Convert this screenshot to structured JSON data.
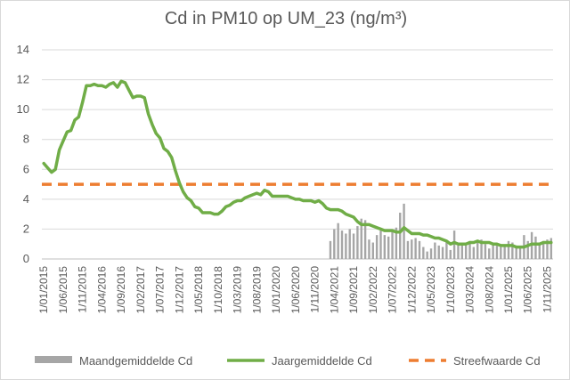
{
  "chart_data": {
    "type": "line",
    "title": "Cd in PM10 op UM_23 (ng/m³)",
    "xlabel": "",
    "ylabel": "",
    "ylim": [
      0,
      14
    ],
    "yticks": [
      0,
      2,
      4,
      6,
      8,
      10,
      12,
      14
    ],
    "grid": "horizontal",
    "legend_position": "bottom",
    "x_start": "2015-01",
    "x_end": "2025-12",
    "x_tick_labels": [
      "1/01/2015",
      "1/06/2015",
      "1/11/2015",
      "1/04/2016",
      "1/09/2016",
      "1/02/2017",
      "1/07/2017",
      "1/12/2017",
      "1/05/2018",
      "1/10/2018",
      "1/03/2019",
      "1/08/2019",
      "1/01/2020",
      "1/06/2020",
      "1/11/2020",
      "1/04/2021",
      "1/09/2021",
      "1/02/2022",
      "1/07/2022",
      "1/12/2022",
      "1/05/2023",
      "1/10/2023",
      "1/03/2024",
      "1/08/2024",
      "1/01/2025",
      "1/06/2025",
      "1/11/2025"
    ],
    "series": [
      {
        "name": "Maandgemiddelde Cd",
        "kind": "bar",
        "color": "#a6a6a6",
        "points": [
          [
            "2021-03",
            1.2
          ],
          [
            "2021-04",
            2.0
          ],
          [
            "2021-05",
            2.4
          ],
          [
            "2021-06",
            1.9
          ],
          [
            "2021-07",
            1.7
          ],
          [
            "2021-08",
            2.0
          ],
          [
            "2021-09",
            1.7
          ],
          [
            "2021-10",
            2.2
          ],
          [
            "2021-11",
            2.7
          ],
          [
            "2021-12",
            2.6
          ],
          [
            "2022-01",
            1.3
          ],
          [
            "2022-02",
            1.1
          ],
          [
            "2022-03",
            1.6
          ],
          [
            "2022-04",
            1.9
          ],
          [
            "2022-05",
            1.6
          ],
          [
            "2022-06",
            1.5
          ],
          [
            "2022-07",
            1.9
          ],
          [
            "2022-08",
            2.1
          ],
          [
            "2022-09",
            3.1
          ],
          [
            "2022-10",
            3.7
          ],
          [
            "2022-11",
            1.2
          ],
          [
            "2022-12",
            1.3
          ],
          [
            "2023-01",
            1.4
          ],
          [
            "2023-02",
            1.2
          ],
          [
            "2023-03",
            0.8
          ],
          [
            "2023-04",
            0.5
          ],
          [
            "2023-05",
            0.7
          ],
          [
            "2023-06",
            1.1
          ],
          [
            "2023-07",
            0.9
          ],
          [
            "2023-08",
            0.8
          ],
          [
            "2023-09",
            1.2
          ],
          [
            "2023-10",
            0.6
          ],
          [
            "2023-11",
            1.9
          ],
          [
            "2023-12",
            0.9
          ],
          [
            "2024-01",
            1.0
          ],
          [
            "2024-02",
            0.9
          ],
          [
            "2024-03",
            1.2
          ],
          [
            "2024-04",
            0.8
          ],
          [
            "2024-05",
            1.1
          ],
          [
            "2024-06",
            1.3
          ],
          [
            "2024-07",
            1.0
          ],
          [
            "2024-08",
            0.7
          ],
          [
            "2024-09",
            0.9
          ],
          [
            "2024-10",
            1.0
          ],
          [
            "2024-11",
            0.8
          ],
          [
            "2024-12",
            0.9
          ],
          [
            "2025-01",
            1.2
          ],
          [
            "2025-02",
            1.1
          ],
          [
            "2025-03",
            0.9
          ],
          [
            "2025-04",
            0.8
          ],
          [
            "2025-05",
            1.6
          ],
          [
            "2025-06",
            1.2
          ],
          [
            "2025-07",
            1.8
          ],
          [
            "2025-08",
            1.5
          ],
          [
            "2025-09",
            1.1
          ],
          [
            "2025-10",
            1.2
          ],
          [
            "2025-11",
            1.3
          ],
          [
            "2025-12",
            1.4
          ]
        ]
      },
      {
        "name": "Jaargemiddelde Cd",
        "kind": "line",
        "color": "#70ad47",
        "points": [
          [
            "2015-01",
            6.4
          ],
          [
            "2015-02",
            6.1
          ],
          [
            "2015-03",
            5.8
          ],
          [
            "2015-04",
            6.0
          ],
          [
            "2015-05",
            7.3
          ],
          [
            "2015-06",
            7.9
          ],
          [
            "2015-07",
            8.5
          ],
          [
            "2015-08",
            8.6
          ],
          [
            "2015-09",
            9.3
          ],
          [
            "2015-10",
            9.5
          ],
          [
            "2015-11",
            10.5
          ],
          [
            "2015-12",
            11.6
          ],
          [
            "2016-01",
            11.6
          ],
          [
            "2016-02",
            11.7
          ],
          [
            "2016-03",
            11.6
          ],
          [
            "2016-04",
            11.6
          ],
          [
            "2016-05",
            11.5
          ],
          [
            "2016-06",
            11.7
          ],
          [
            "2016-07",
            11.8
          ],
          [
            "2016-08",
            11.5
          ],
          [
            "2016-09",
            11.9
          ],
          [
            "2016-10",
            11.8
          ],
          [
            "2016-11",
            11.3
          ],
          [
            "2016-12",
            10.8
          ],
          [
            "2017-01",
            10.9
          ],
          [
            "2017-02",
            10.9
          ],
          [
            "2017-03",
            10.8
          ],
          [
            "2017-04",
            9.7
          ],
          [
            "2017-05",
            9.0
          ],
          [
            "2017-06",
            8.4
          ],
          [
            "2017-07",
            8.1
          ],
          [
            "2017-08",
            7.4
          ],
          [
            "2017-09",
            7.2
          ],
          [
            "2017-10",
            6.8
          ],
          [
            "2017-11",
            5.9
          ],
          [
            "2017-12",
            5.1
          ],
          [
            "2018-01",
            4.5
          ],
          [
            "2018-02",
            4.1
          ],
          [
            "2018-03",
            3.9
          ],
          [
            "2018-04",
            3.5
          ],
          [
            "2018-05",
            3.4
          ],
          [
            "2018-06",
            3.1
          ],
          [
            "2018-07",
            3.1
          ],
          [
            "2018-08",
            3.1
          ],
          [
            "2018-09",
            3.0
          ],
          [
            "2018-10",
            3.0
          ],
          [
            "2018-11",
            3.2
          ],
          [
            "2018-12",
            3.5
          ],
          [
            "2019-01",
            3.6
          ],
          [
            "2019-02",
            3.8
          ],
          [
            "2019-03",
            3.9
          ],
          [
            "2019-04",
            3.9
          ],
          [
            "2019-05",
            4.1
          ],
          [
            "2019-06",
            4.2
          ],
          [
            "2019-07",
            4.3
          ],
          [
            "2019-08",
            4.4
          ],
          [
            "2019-09",
            4.3
          ],
          [
            "2019-10",
            4.6
          ],
          [
            "2019-11",
            4.5
          ],
          [
            "2019-12",
            4.2
          ],
          [
            "2020-01",
            4.2
          ],
          [
            "2020-02",
            4.2
          ],
          [
            "2020-03",
            4.2
          ],
          [
            "2020-04",
            4.2
          ],
          [
            "2020-05",
            4.1
          ],
          [
            "2020-06",
            4.0
          ],
          [
            "2020-07",
            4.0
          ],
          [
            "2020-08",
            3.9
          ],
          [
            "2020-09",
            3.9
          ],
          [
            "2020-10",
            3.9
          ],
          [
            "2020-11",
            3.8
          ],
          [
            "2020-12",
            3.9
          ],
          [
            "2021-01",
            3.7
          ],
          [
            "2021-02",
            3.4
          ],
          [
            "2021-03",
            3.3
          ],
          [
            "2021-04",
            3.3
          ],
          [
            "2021-05",
            3.3
          ],
          [
            "2021-06",
            3.2
          ],
          [
            "2021-07",
            3.0
          ],
          [
            "2021-08",
            2.9
          ],
          [
            "2021-09",
            2.8
          ],
          [
            "2021-10",
            2.5
          ],
          [
            "2021-11",
            2.3
          ],
          [
            "2021-12",
            2.3
          ],
          [
            "2022-01",
            2.3
          ],
          [
            "2022-02",
            2.2
          ],
          [
            "2022-03",
            2.1
          ],
          [
            "2022-04",
            2.0
          ],
          [
            "2022-05",
            1.9
          ],
          [
            "2022-06",
            1.9
          ],
          [
            "2022-07",
            1.9
          ],
          [
            "2022-08",
            1.8
          ],
          [
            "2022-09",
            1.8
          ],
          [
            "2022-10",
            2.1
          ],
          [
            "2022-11",
            1.9
          ],
          [
            "2022-12",
            1.7
          ],
          [
            "2023-01",
            1.7
          ],
          [
            "2023-02",
            1.7
          ],
          [
            "2023-03",
            1.6
          ],
          [
            "2023-04",
            1.6
          ],
          [
            "2023-05",
            1.5
          ],
          [
            "2023-06",
            1.4
          ],
          [
            "2023-07",
            1.4
          ],
          [
            "2023-08",
            1.3
          ],
          [
            "2023-09",
            1.2
          ],
          [
            "2023-10",
            1.0
          ],
          [
            "2023-11",
            1.1
          ],
          [
            "2023-12",
            1.0
          ],
          [
            "2024-01",
            1.0
          ],
          [
            "2024-02",
            1.0
          ],
          [
            "2024-03",
            1.1
          ],
          [
            "2024-04",
            1.1
          ],
          [
            "2024-05",
            1.2
          ],
          [
            "2024-06",
            1.1
          ],
          [
            "2024-07",
            1.1
          ],
          [
            "2024-08",
            1.1
          ],
          [
            "2024-09",
            1.0
          ],
          [
            "2024-10",
            1.0
          ],
          [
            "2024-11",
            0.9
          ],
          [
            "2024-12",
            0.9
          ],
          [
            "2025-01",
            0.9
          ],
          [
            "2025-02",
            0.9
          ],
          [
            "2025-03",
            0.8
          ],
          [
            "2025-04",
            0.8
          ],
          [
            "2025-05",
            0.8
          ],
          [
            "2025-06",
            0.9
          ],
          [
            "2025-07",
            1.0
          ],
          [
            "2025-08",
            1.0
          ],
          [
            "2025-09",
            1.0
          ],
          [
            "2025-10",
            1.1
          ],
          [
            "2025-11",
            1.1
          ],
          [
            "2025-12",
            1.1
          ]
        ]
      },
      {
        "name": "Streefwaarde Cd",
        "kind": "dashed-line",
        "color": "#ed7d31",
        "value": 5
      }
    ]
  }
}
